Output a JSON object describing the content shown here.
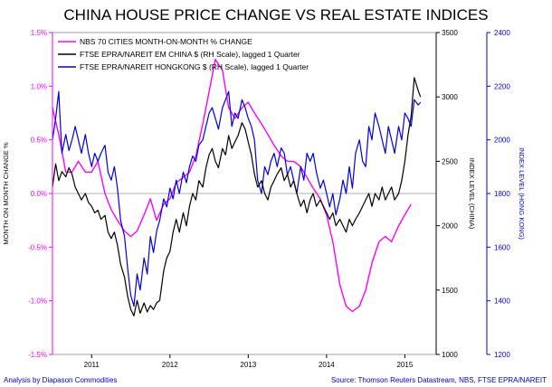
{
  "chart_data": {
    "type": "line",
    "title": "CHINA HOUSE PRICE CHANGE VS REAL ESTATE INDICES",
    "footer_left": "Analysis by Diapason Commodities",
    "footer_right": "Source: Thomson Reuters Datastream, NBS, FTSE EPRA/NAREIT",
    "axes": {
      "left": {
        "label": "MONTH ON MONTH CHANGE %",
        "range": [
          -1.5,
          1.5
        ],
        "ticks": [
          "1.5%",
          "1.0%",
          "0.5%",
          "0.0%",
          "-0.5%",
          "-1.0%",
          "-1.5%"
        ],
        "tick_values": [
          1.5,
          1.0,
          0.5,
          0.0,
          -0.5,
          -1.0,
          -1.5
        ],
        "color": "#ff00ff"
      },
      "right1": {
        "label": "INDEX LEVEL (CHINA)",
        "range": [
          1000,
          3500
        ],
        "ticks": [
          "3500",
          "3000",
          "2500",
          "2000",
          "1500",
          "1000"
        ],
        "tick_values": [
          3500,
          3000,
          2500,
          2000,
          1500,
          1000
        ],
        "color": "#000000"
      },
      "right2": {
        "label": "INDEX LEVEL (HONG KONG)",
        "range": [
          1200,
          2400
        ],
        "ticks": [
          "2400",
          "2200",
          "2000",
          "1800",
          "1600",
          "1400",
          "1200"
        ],
        "tick_values": [
          2400,
          2200,
          2000,
          1800,
          1600,
          1400,
          1200
        ],
        "color": "#0000dd"
      },
      "x": {
        "range": [
          2010.5,
          2015.4
        ],
        "ticks": [
          "2011",
          "2012",
          "2013",
          "2014",
          "2015"
        ],
        "tick_values": [
          2011,
          2012,
          2013,
          2014,
          2015
        ]
      }
    },
    "legend": {
      "placement": "top-left",
      "entries": [
        {
          "label": "NBS 70 CITIES MONTH-ON-MONTH % CHANGE",
          "color": "#ff00ff"
        },
        {
          "label": "FTSE EPRA/NAREIT EM CHINA $ (RH Scale), lagged 1 Quarter",
          "color": "#000000"
        },
        {
          "label": "FTSE EPRA/NAREIT HONGKONG $ (RH Scale), lagged 1 Quarter",
          "color": "#0000dd"
        }
      ]
    },
    "zero_line": true,
    "series": [
      {
        "name": "NBS 70 CITIES MONTH-ON-MONTH % CHANGE",
        "axis": "left",
        "color": "#ff00ff",
        "x": [
          2010.5,
          2010.58,
          2010.67,
          2010.75,
          2010.83,
          2010.92,
          2011.0,
          2011.08,
          2011.17,
          2011.25,
          2011.33,
          2011.42,
          2011.5,
          2011.58,
          2011.67,
          2011.75,
          2011.83,
          2011.92,
          2012.0,
          2012.08,
          2012.17,
          2012.25,
          2012.33,
          2012.42,
          2012.5,
          2012.58,
          2012.67,
          2012.75,
          2012.83,
          2012.92,
          2013.0,
          2013.08,
          2013.17,
          2013.25,
          2013.33,
          2013.42,
          2013.5,
          2013.58,
          2013.67,
          2013.75,
          2013.83,
          2013.92,
          2014.0,
          2014.08,
          2014.17,
          2014.25,
          2014.33,
          2014.42,
          2014.5,
          2014.58,
          2014.67,
          2014.75,
          2014.83,
          2014.92,
          2015.0,
          2015.08
        ],
        "values": [
          0.8,
          0.55,
          0.2,
          0.2,
          0.3,
          0.2,
          0.2,
          0.3,
          0.0,
          -0.15,
          -0.25,
          -0.35,
          -0.4,
          -0.35,
          -0.2,
          -0.05,
          -0.25,
          -0.1,
          -0.05,
          0.1,
          0.15,
          0.2,
          0.35,
          0.65,
          0.95,
          1.25,
          1.15,
          0.8,
          0.7,
          0.8,
          0.85,
          0.75,
          0.65,
          0.55,
          0.45,
          0.35,
          0.3,
          0.3,
          0.25,
          0.15,
          0.05,
          -0.05,
          -0.2,
          -0.45,
          -0.85,
          -1.05,
          -1.1,
          -1.05,
          -0.9,
          -0.65,
          -0.45,
          -0.4,
          -0.45,
          -0.3,
          -0.2,
          -0.1
        ]
      },
      {
        "name": "FTSE EPRA/NAREIT EM CHINA $ (RH Scale), lagged 1 Quarter",
        "axis": "right1",
        "color": "#000000",
        "x": [
          2010.5,
          2010.54,
          2010.58,
          2010.62,
          2010.67,
          2010.71,
          2010.75,
          2010.79,
          2010.83,
          2010.87,
          2010.92,
          2010.96,
          2011.0,
          2011.04,
          2011.08,
          2011.12,
          2011.17,
          2011.21,
          2011.25,
          2011.29,
          2011.33,
          2011.37,
          2011.42,
          2011.46,
          2011.5,
          2011.54,
          2011.58,
          2011.62,
          2011.67,
          2011.71,
          2011.75,
          2011.79,
          2011.83,
          2011.87,
          2011.92,
          2011.96,
          2012.0,
          2012.04,
          2012.08,
          2012.12,
          2012.17,
          2012.21,
          2012.25,
          2012.29,
          2012.33,
          2012.37,
          2012.42,
          2012.46,
          2012.5,
          2012.54,
          2012.58,
          2012.62,
          2012.67,
          2012.71,
          2012.75,
          2012.79,
          2012.83,
          2012.87,
          2012.92,
          2012.96,
          2013.0,
          2013.04,
          2013.08,
          2013.12,
          2013.17,
          2013.21,
          2013.25,
          2013.29,
          2013.33,
          2013.37,
          2013.42,
          2013.46,
          2013.5,
          2013.54,
          2013.58,
          2013.62,
          2013.67,
          2013.71,
          2013.75,
          2013.79,
          2013.83,
          2013.87,
          2013.92,
          2013.96,
          2014.0,
          2014.04,
          2014.08,
          2014.12,
          2014.17,
          2014.21,
          2014.25,
          2014.29,
          2014.33,
          2014.37,
          2014.42,
          2014.46,
          2014.5,
          2014.54,
          2014.58,
          2014.62,
          2014.67,
          2014.71,
          2014.75,
          2014.79,
          2014.83,
          2014.87,
          2014.92,
          2014.96,
          2015.0,
          2015.04,
          2015.08,
          2015.12,
          2015.17,
          2015.2
        ],
        "values": [
          2300,
          2480,
          2350,
          2420,
          2380,
          2450,
          2400,
          2300,
          2250,
          2200,
          2250,
          2180,
          2150,
          2100,
          2120,
          2050,
          2080,
          1950,
          1900,
          1950,
          1850,
          1700,
          1600,
          1450,
          1350,
          1300,
          1420,
          1320,
          1400,
          1330,
          1380,
          1350,
          1400,
          1420,
          1650,
          1750,
          1800,
          1950,
          2050,
          1950,
          2100,
          2000,
          2150,
          2250,
          2200,
          2350,
          2300,
          2450,
          2550,
          2600,
          2500,
          2450,
          2600,
          2550,
          2700,
          2600,
          2650,
          2700,
          2800,
          2750,
          2650,
          2550,
          2400,
          2300,
          2350,
          2250,
          2200,
          2300,
          2350,
          2400,
          2450,
          2350,
          2400,
          2300,
          2350,
          2250,
          2150,
          2200,
          2100,
          2200,
          2250,
          2150,
          2200,
          2150,
          2100,
          2050,
          2100,
          2000,
          2050,
          2000,
          1950,
          2050,
          2000,
          2050,
          2100,
          2150,
          2200,
          2250,
          2150,
          2250,
          2200,
          2300,
          2200,
          2250,
          2300,
          2200,
          2250,
          2350,
          2500,
          2700,
          2850,
          3150,
          3050,
          3000
        ]
      },
      {
        "name": "FTSE EPRA/NAREIT HONGKONG $ (RH Scale), lagged 1 Quarter",
        "axis": "right2",
        "color": "#0000dd",
        "x": [
          2010.5,
          2010.54,
          2010.58,
          2010.62,
          2010.67,
          2010.71,
          2010.75,
          2010.79,
          2010.83,
          2010.87,
          2010.92,
          2010.96,
          2011.0,
          2011.04,
          2011.08,
          2011.12,
          2011.17,
          2011.21,
          2011.25,
          2011.29,
          2011.33,
          2011.37,
          2011.42,
          2011.46,
          2011.5,
          2011.54,
          2011.58,
          2011.62,
          2011.67,
          2011.71,
          2011.75,
          2011.79,
          2011.83,
          2011.87,
          2011.92,
          2011.96,
          2012.0,
          2012.04,
          2012.08,
          2012.12,
          2012.17,
          2012.21,
          2012.25,
          2012.29,
          2012.33,
          2012.37,
          2012.42,
          2012.46,
          2012.5,
          2012.54,
          2012.58,
          2012.62,
          2012.67,
          2012.71,
          2012.75,
          2012.79,
          2012.83,
          2012.87,
          2012.92,
          2012.96,
          2013.0,
          2013.04,
          2013.08,
          2013.12,
          2013.17,
          2013.21,
          2013.25,
          2013.29,
          2013.33,
          2013.37,
          2013.42,
          2013.46,
          2013.5,
          2013.54,
          2013.58,
          2013.62,
          2013.67,
          2013.71,
          2013.75,
          2013.79,
          2013.83,
          2013.87,
          2013.92,
          2013.96,
          2014.0,
          2014.04,
          2014.08,
          2014.12,
          2014.17,
          2014.21,
          2014.25,
          2014.29,
          2014.33,
          2014.37,
          2014.42,
          2014.46,
          2014.5,
          2014.54,
          2014.58,
          2014.62,
          2014.67,
          2014.71,
          2014.75,
          2014.79,
          2014.83,
          2014.87,
          2014.92,
          2014.96,
          2015.0,
          2015.04,
          2015.08,
          2015.12,
          2015.17,
          2015.2
        ],
        "values": [
          2000,
          2080,
          2180,
          1950,
          2020,
          1960,
          2000,
          2050,
          2000,
          1950,
          2020,
          1950,
          1900,
          1950,
          1920,
          1950,
          1980,
          1880,
          1850,
          1900,
          1820,
          1700,
          1640,
          1520,
          1420,
          1380,
          1500,
          1440,
          1560,
          1500,
          1640,
          1580,
          1660,
          1700,
          1780,
          1750,
          1820,
          1780,
          1850,
          1800,
          1880,
          1840,
          1900,
          1940,
          1920,
          1980,
          2000,
          2050,
          2100,
          2120,
          2080,
          2040,
          2120,
          2150,
          2180,
          2050,
          2100,
          2080,
          2150,
          2120,
          2080,
          2050,
          2000,
          1850,
          1800,
          1900,
          1870,
          1920,
          1950,
          1900,
          1970,
          1950,
          1870,
          1900,
          1850,
          1800,
          1900,
          1850,
          1950,
          1920,
          1950,
          1880,
          1820,
          1850,
          1800,
          1750,
          1800,
          1720,
          1780,
          1850,
          1800,
          1900,
          1820,
          1950,
          2000,
          1920,
          1900,
          2050,
          2000,
          2100,
          2050,
          2000,
          1950,
          2050,
          2000,
          1950,
          2050,
          2000,
          2100,
          2080,
          2050,
          2150,
          2130,
          2140
        ]
      }
    ]
  }
}
